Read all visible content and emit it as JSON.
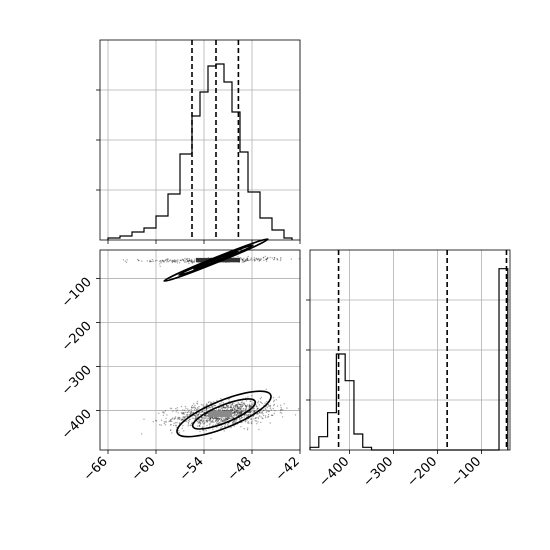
{
  "chart_data": [
    {
      "type": "histogram",
      "panel": "top-left",
      "x_variable": "param_1",
      "xlim": [
        -67,
        -42
      ],
      "xticks": [
        -66,
        -60,
        -54,
        -48,
        -42
      ],
      "bins": [
        {
          "x0": -66,
          "x1": -64.5,
          "count": 1
        },
        {
          "x0": -64.5,
          "x1": -63,
          "count": 2
        },
        {
          "x0": -63,
          "x1": -61.5,
          "count": 4
        },
        {
          "x0": -61.5,
          "x1": -60,
          "count": 6
        },
        {
          "x0": -60,
          "x1": -58.5,
          "count": 12
        },
        {
          "x0": -58.5,
          "x1": -57,
          "count": 23
        },
        {
          "x0": -57,
          "x1": -55.5,
          "count": 43
        },
        {
          "x0": -55.5,
          "x1": -54.5,
          "count": 62
        },
        {
          "x0": -54.5,
          "x1": -53.5,
          "count": 74
        },
        {
          "x0": -53.5,
          "x1": -52.5,
          "count": 87
        },
        {
          "x0": -52.5,
          "x1": -51.5,
          "count": 88
        },
        {
          "x0": -51.5,
          "x1": -50.5,
          "count": 79
        },
        {
          "x0": -50.5,
          "x1": -49.5,
          "count": 64
        },
        {
          "x0": -49.5,
          "x1": -48.5,
          "count": 44
        },
        {
          "x0": -48.5,
          "x1": -47,
          "count": 24
        },
        {
          "x0": -47,
          "x1": -45.5,
          "count": 11
        },
        {
          "x0": -45.5,
          "x1": -44,
          "count": 5
        },
        {
          "x0": -44,
          "x1": -43,
          "count": 1
        }
      ],
      "ylim": [
        0,
        100
      ],
      "quantiles": [
        -55.5,
        -52.5,
        -49.7
      ],
      "grid": true
    },
    {
      "type": "heatmap",
      "panel": "bottom-left",
      "xlim": [
        -67,
        -42
      ],
      "ylim": [
        -490,
        -35
      ],
      "xticks": [
        -66,
        -60,
        -54,
        -48,
        -42
      ],
      "yticks": [
        -100,
        -200,
        -300,
        -400
      ],
      "clusters": [
        {
          "x_center": -52.5,
          "y_center": -58,
          "x_spread": 4.5,
          "y_spread": 3,
          "points": 320
        },
        {
          "x_center": -51.5,
          "y_center": -408,
          "x_spread": 3.2,
          "y_spread": 14,
          "points": 1100
        }
      ],
      "contours": [
        {
          "x_center": -52.5,
          "y_center": -58,
          "x_halfwidth": 7,
          "y_halfwidth": 6
        },
        {
          "x_center": -52.5,
          "y_center": -58,
          "x_halfwidth": 5,
          "y_halfwidth": 4
        },
        {
          "x_center": -52.5,
          "y_center": -58,
          "x_halfwidth": 3,
          "y_halfwidth": 2
        },
        {
          "x_center": -51.5,
          "y_center": -408,
          "x_halfwidth": 6.3,
          "y_halfwidth": 31
        },
        {
          "x_center": -51.5,
          "y_center": -408,
          "x_halfwidth": 4.2,
          "y_halfwidth": 20
        }
      ],
      "grid": true
    },
    {
      "type": "histogram",
      "panel": "bottom-right",
      "x_variable": "param_2",
      "xlim": [
        -490,
        -35
      ],
      "xticks": [
        -400,
        -300,
        -200,
        -100
      ],
      "bins": [
        {
          "x0": -490,
          "x1": -470,
          "count": 1
        },
        {
          "x0": -470,
          "x1": -450,
          "count": 5
        },
        {
          "x0": -450,
          "x1": -430,
          "count": 14
        },
        {
          "x0": -430,
          "x1": -410,
          "count": 36
        },
        {
          "x0": -410,
          "x1": -390,
          "count": 26
        },
        {
          "x0": -390,
          "x1": -370,
          "count": 6
        },
        {
          "x0": -370,
          "x1": -350,
          "count": 1
        },
        {
          "x0": -60,
          "x1": -40,
          "count": 68
        }
      ],
      "ylim": [
        0,
        75
      ],
      "quantiles": [
        -425,
        -178,
        -43
      ],
      "grid": true
    }
  ]
}
